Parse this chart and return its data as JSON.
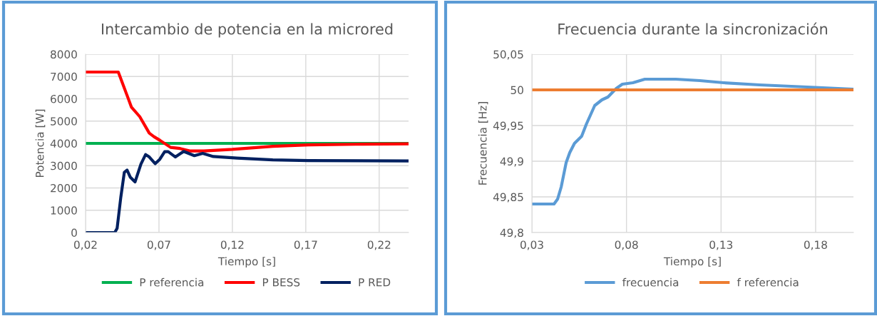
{
  "chart_data": [
    {
      "type": "line",
      "title": "Intercambio de potencia en la microred",
      "xlabel": "Tiempo [s]",
      "ylabel": "Potencia [W]",
      "xlim": [
        0.02,
        0.24
      ],
      "xticks": [
        {
          "value": 0.02,
          "label": "0,02"
        },
        {
          "value": 0.07,
          "label": "0,07"
        },
        {
          "value": 0.12,
          "label": "0,12"
        },
        {
          "value": 0.17,
          "label": "0,17"
        },
        {
          "value": 0.22,
          "label": "0,22"
        }
      ],
      "ylim": [
        0,
        8000
      ],
      "yticks": [
        0,
        1000,
        2000,
        3000,
        4000,
        5000,
        6000,
        7000,
        8000
      ],
      "grid": true,
      "legend": "bottom",
      "marker": "none",
      "line_style": "solid",
      "series": [
        {
          "name": "P referencia",
          "color": "#00b050",
          "x": [
            0.02,
            0.24
          ],
          "values": [
            4000,
            4000
          ]
        },
        {
          "name": "P BESS",
          "color": "#ff0000",
          "x": [
            0.02,
            0.0423,
            0.0488,
            0.0512,
            0.0569,
            0.0634,
            0.0666,
            0.0706,
            0.0779,
            0.0844,
            0.0909,
            0.1006,
            0.12,
            0.1475,
            0.1718,
            0.204,
            0.24
          ],
          "values": [
            7200,
            7200,
            6060,
            5630,
            5200,
            4460,
            4300,
            4140,
            3820,
            3770,
            3660,
            3660,
            3730,
            3870,
            3930,
            3960,
            3980
          ]
        },
        {
          "name": "P RED",
          "color": "#002060",
          "x": [
            0.02,
            0.0399,
            0.0415,
            0.044,
            0.0464,
            0.0483,
            0.0504,
            0.0537,
            0.0577,
            0.0609,
            0.0634,
            0.0674,
            0.0706,
            0.0739,
            0.0763,
            0.0812,
            0.0868,
            0.0941,
            0.0998,
            0.107,
            0.1232,
            0.1475,
            0.1718,
            0.24
          ],
          "values": [
            0,
            0,
            190,
            1580,
            2700,
            2800,
            2490,
            2270,
            3070,
            3500,
            3390,
            3090,
            3290,
            3630,
            3630,
            3390,
            3640,
            3450,
            3550,
            3410,
            3340,
            3260,
            3230,
            3210
          ]
        }
      ]
    },
    {
      "type": "line",
      "title": "Frecuencia durante la sincronización",
      "xlabel": "Tiempo [s]",
      "ylabel": "Frecuencia [Hz]",
      "xlim": [
        0.03,
        0.2
      ],
      "xticks": [
        {
          "value": 0.03,
          "label": "0,03"
        },
        {
          "value": 0.08,
          "label": "0,08"
        },
        {
          "value": 0.13,
          "label": "0,13"
        },
        {
          "value": 0.18,
          "label": "0,18"
        }
      ],
      "ylim": [
        49.8,
        50.05
      ],
      "yticks": [
        {
          "value": 49.8,
          "label": "49,8"
        },
        {
          "value": 49.85,
          "label": "49,85"
        },
        {
          "value": 49.9,
          "label": "49,9"
        },
        {
          "value": 49.95,
          "label": "49,95"
        },
        {
          "value": 50,
          "label": "50"
        },
        {
          "value": 50.05,
          "label": "50,05"
        }
      ],
      "grid": true,
      "legend": "bottom",
      "marker": "none",
      "line_style": "solid",
      "series": [
        {
          "name": "frecuencia",
          "color": "#5b9bd5",
          "x": [
            0.03,
            0.0417,
            0.0436,
            0.0455,
            0.0481,
            0.05,
            0.0525,
            0.0563,
            0.0588,
            0.0632,
            0.067,
            0.0702,
            0.0746,
            0.0778,
            0.0834,
            0.0897,
            0.1061,
            0.1188,
            0.1314,
            0.1503,
            0.1756,
            0.2
          ],
          "values": [
            49.84,
            49.84,
            49.847,
            49.864,
            49.898,
            49.912,
            49.925,
            49.935,
            49.952,
            49.978,
            49.986,
            49.99,
            50.002,
            50.008,
            50.01,
            50.015,
            50.015,
            50.013,
            50.01,
            50.007,
            50.004,
            50.001
          ]
        },
        {
          "name": "f referencia",
          "color": "#ed7d31",
          "x": [
            0.03,
            0.2
          ],
          "values": [
            50,
            50
          ]
        }
      ]
    }
  ]
}
